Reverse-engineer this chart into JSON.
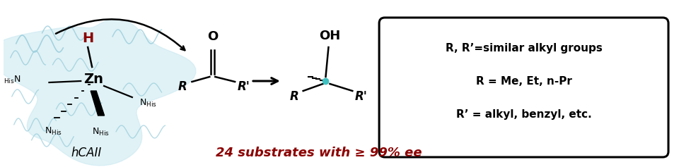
{
  "figsize": [
    9.54,
    2.37
  ],
  "dpi": 100,
  "bg_color": "#ffffff",
  "dark_red": "#8B0000",
  "cyan_color": "#40C0C0",
  "light_blue": "#C8E8F0",
  "light_blue_line": "#90C8D8",
  "box_line1": "R, R’=similar alkyl groups",
  "box_line2": "R = Me, Et, n-Pr",
  "box_line3": "R’ = alkyl, benzyl, etc.",
  "bottom_text": "24 substrates with ≥ 99% ee",
  "hcaii_label": "hCAII"
}
